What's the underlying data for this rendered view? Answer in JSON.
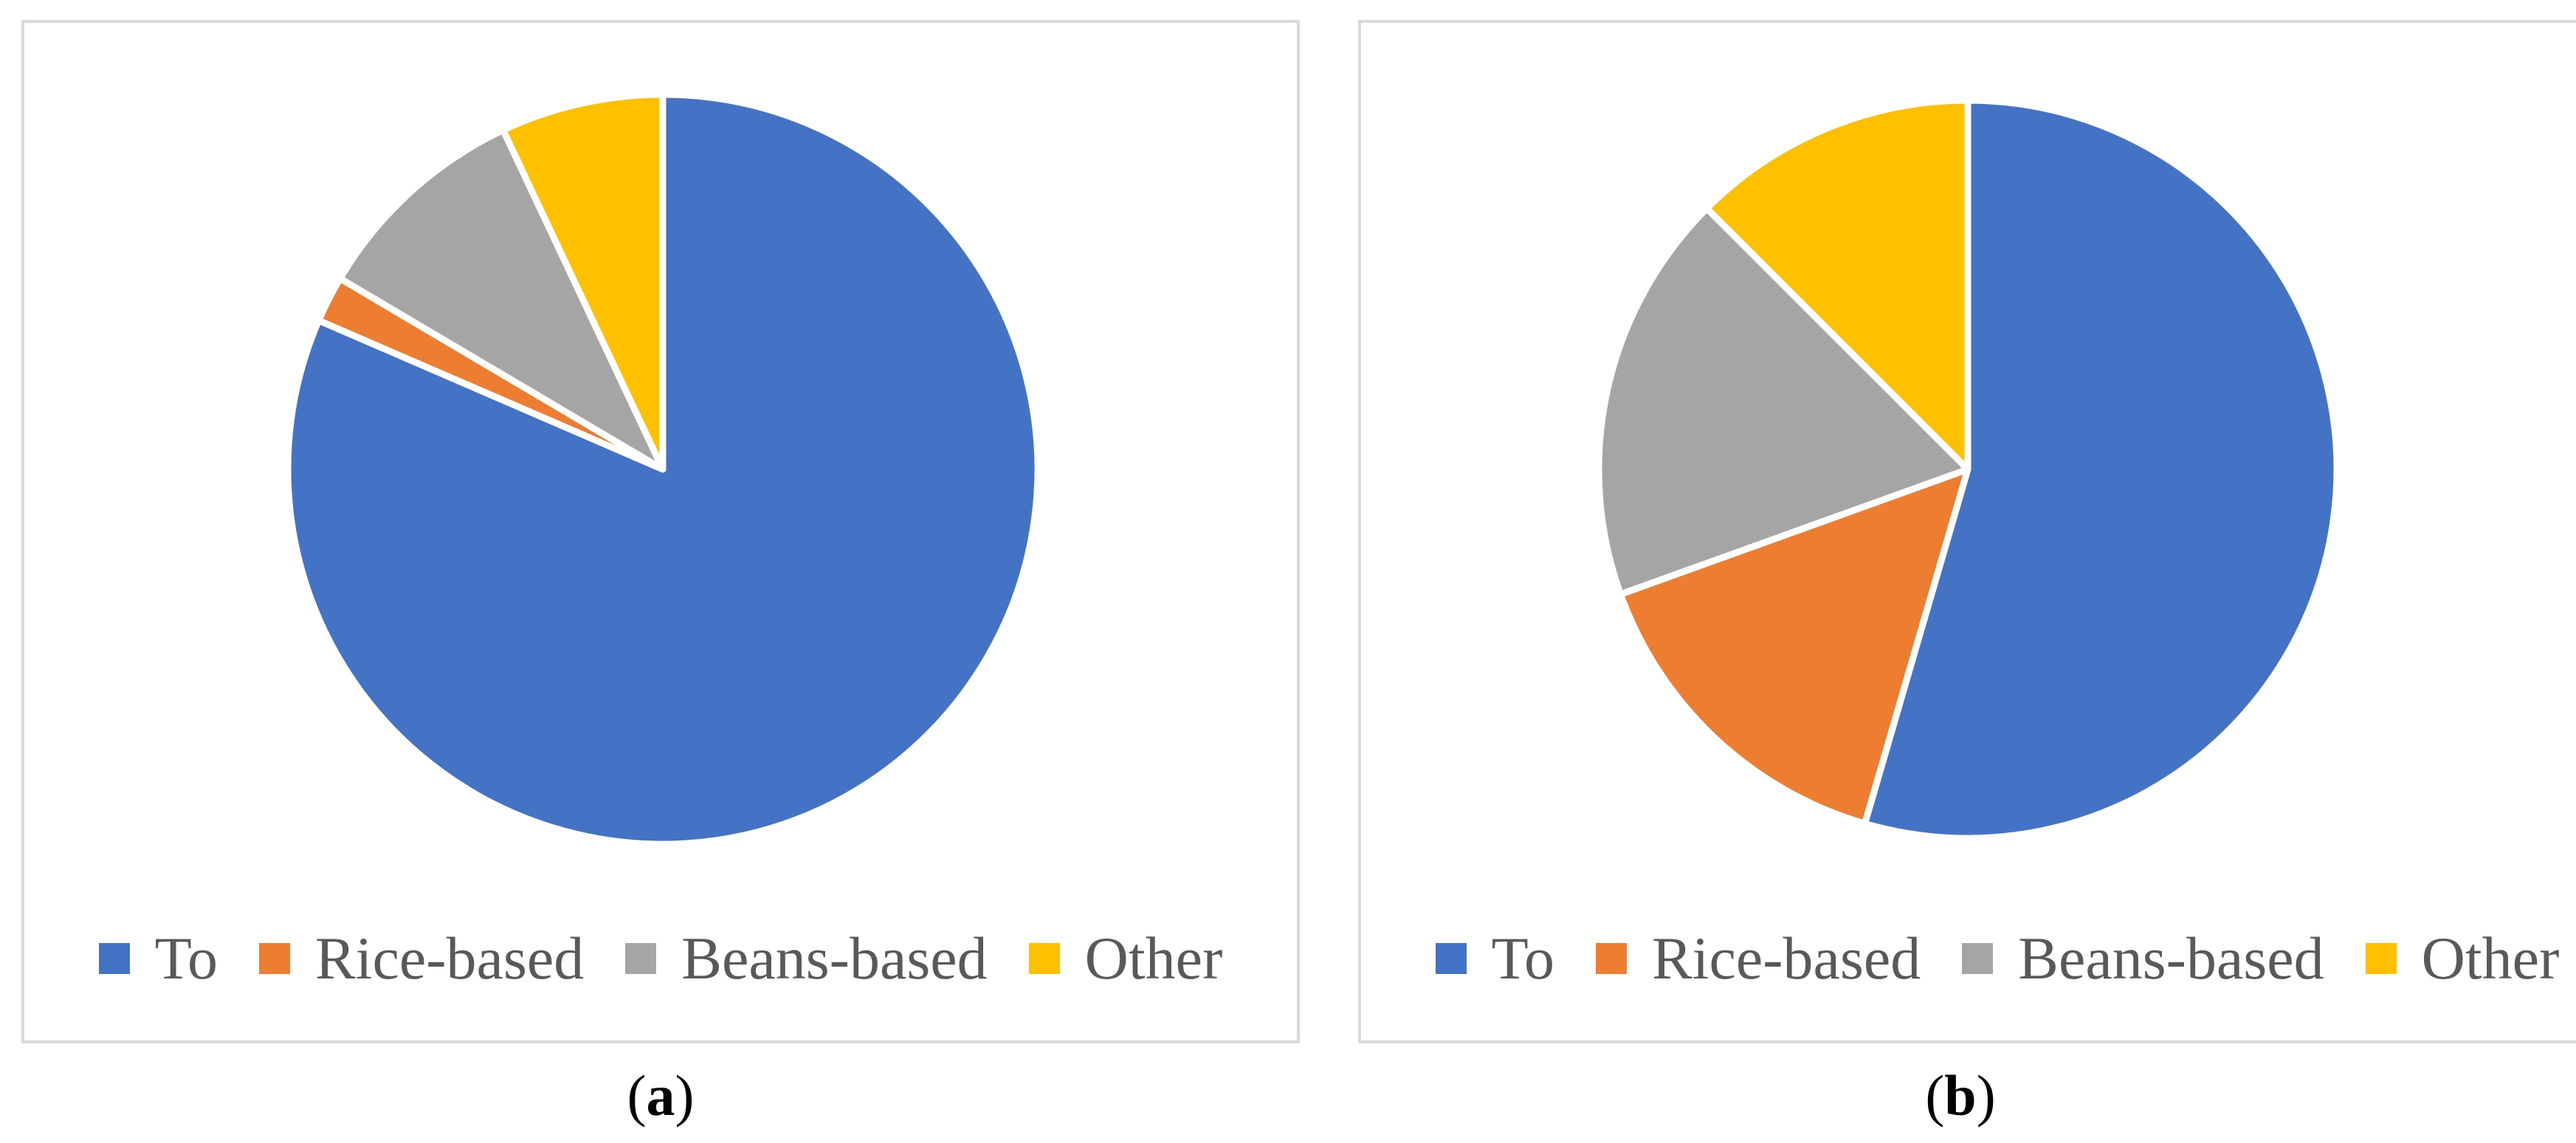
{
  "chart_data": [
    {
      "type": "pie",
      "panel": "a",
      "caption_label": "a",
      "categories": [
        "To",
        "Rice-based",
        "Beans-based",
        "Other"
      ],
      "values": [
        81.5,
        2.0,
        9.5,
        7.0
      ],
      "colors": [
        "#4472c4",
        "#ed7d31",
        "#a5a5a5",
        "#ffc000"
      ],
      "start_angle": "12 o'clock, clockwise",
      "legend": {
        "placement": "bottom",
        "items": [
          {
            "label": "To",
            "color": "#4472c4"
          },
          {
            "label": "Rice-based",
            "color": "#ed7d31"
          },
          {
            "label": "Beans-based",
            "color": "#a5a5a5"
          },
          {
            "label": "Other",
            "color": "#ffc000"
          }
        ]
      }
    },
    {
      "type": "pie",
      "panel": "b",
      "caption_label": "b",
      "categories": [
        "To",
        "Rice-based",
        "Beans-based",
        "Other"
      ],
      "values": [
        54.5,
        15.0,
        18.0,
        12.5
      ],
      "colors": [
        "#4472c4",
        "#ed7d31",
        "#a5a5a5",
        "#ffc000"
      ],
      "start_angle": "12 o'clock, clockwise",
      "legend": {
        "placement": "bottom",
        "items": [
          {
            "label": "To",
            "color": "#4472c4"
          },
          {
            "label": "Rice-based",
            "color": "#ed7d31"
          },
          {
            "label": "Beans-based",
            "color": "#a5a5a5"
          },
          {
            "label": "Other",
            "color": "#ffc000"
          }
        ]
      }
    }
  ],
  "captions": {
    "a": {
      "open": "(",
      "label": "a",
      "close": ")"
    },
    "b": {
      "open": "(",
      "label": "b",
      "close": ")"
    }
  }
}
